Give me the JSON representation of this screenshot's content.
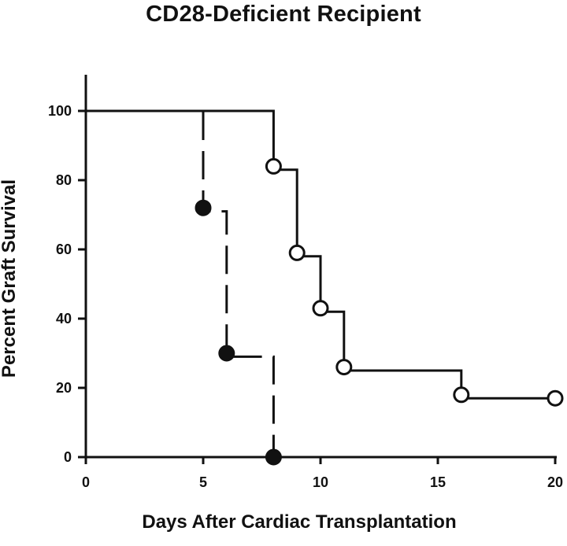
{
  "chart_data": {
    "type": "line",
    "title": "CD28-Deficient Recipient",
    "xlabel": "Days After Cardiac Transplantation",
    "ylabel": "Percent Graft Survival",
    "xlim": [
      0,
      20
    ],
    "ylim": [
      0,
      110
    ],
    "x_ticks": [
      "0",
      "5",
      "10",
      "15",
      "20"
    ],
    "y_ticks": [
      "0",
      "20",
      "40",
      "60",
      "80",
      "100"
    ],
    "grid": false,
    "series": [
      {
        "style": "solid",
        "marker": "open-circle",
        "color": "#111111",
        "steps": [
          [
            0,
            100
          ],
          [
            8,
            83
          ],
          [
            9,
            58
          ],
          [
            10,
            42
          ],
          [
            11,
            25
          ],
          [
            16,
            17
          ],
          [
            20,
            17
          ]
        ],
        "points": [
          [
            8,
            84
          ],
          [
            9,
            59
          ],
          [
            10,
            43
          ],
          [
            11,
            26
          ],
          [
            16,
            18
          ],
          [
            20,
            17
          ]
        ]
      },
      {
        "style": "dashed",
        "marker": "filled-circle",
        "color": "#111111",
        "steps": [
          [
            0,
            100
          ],
          [
            5,
            71
          ],
          [
            6,
            29
          ],
          [
            8,
            0
          ]
        ],
        "points": [
          [
            5,
            72
          ],
          [
            6,
            30
          ],
          [
            8,
            0
          ]
        ]
      }
    ]
  }
}
